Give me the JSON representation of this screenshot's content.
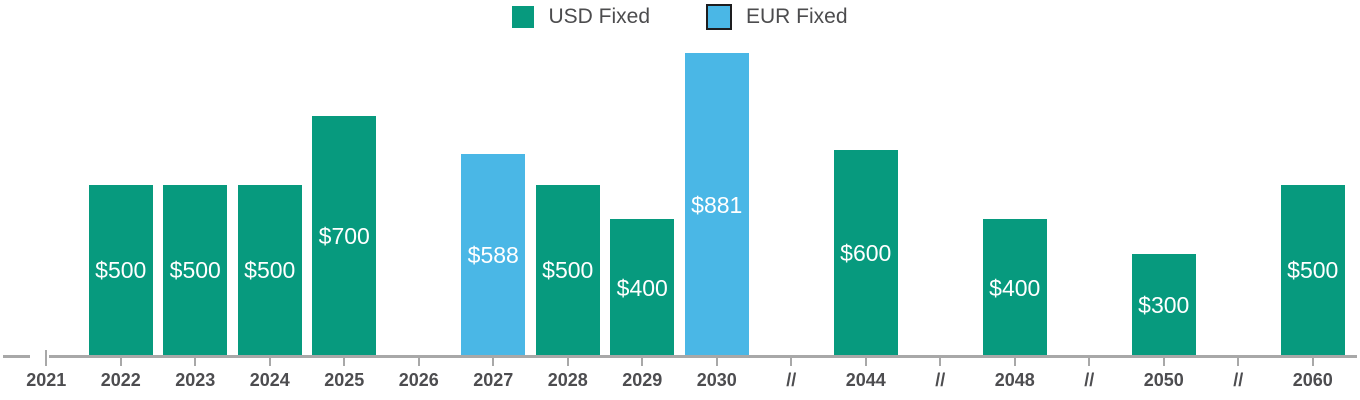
{
  "legend": [
    {
      "label": "USD Fixed",
      "color": "#079a7e",
      "border": null
    },
    {
      "label": "EUR Fixed",
      "color": "#4ab7e6",
      "border": "#1d1d1f"
    }
  ],
  "chart_data": {
    "type": "bar",
    "title": "",
    "xlabel": "",
    "ylabel": "",
    "ylim": [
      0,
      920
    ],
    "grid": false,
    "legend_position": "top-center",
    "categories": [
      "2021",
      "2022",
      "2023",
      "2024",
      "2025",
      "2026",
      "2027",
      "2028",
      "2029",
      "2030",
      "//",
      "2044",
      "//",
      "2048",
      "//",
      "2050",
      "//",
      "2060"
    ],
    "colors": {
      "USD Fixed": "#079a7e",
      "EUR Fixed": "#4ab7e6"
    },
    "bars": [
      {
        "category": "2022",
        "value": 500,
        "label": "$500",
        "series": "USD Fixed"
      },
      {
        "category": "2023",
        "value": 500,
        "label": "$500",
        "series": "USD Fixed"
      },
      {
        "category": "2024",
        "value": 500,
        "label": "$500",
        "series": "USD Fixed"
      },
      {
        "category": "2025",
        "value": 700,
        "label": "$700",
        "series": "USD Fixed"
      },
      {
        "category": "2027",
        "value": 588,
        "label": "$588",
        "series": "EUR Fixed"
      },
      {
        "category": "2028",
        "value": 500,
        "label": "$500",
        "series": "USD Fixed"
      },
      {
        "category": "2029",
        "value": 400,
        "label": "$400",
        "series": "USD Fixed"
      },
      {
        "category": "2030",
        "value": 881,
        "label": "$881",
        "series": "EUR Fixed"
      },
      {
        "category": "2044",
        "value": 600,
        "label": "$600",
        "series": "USD Fixed"
      },
      {
        "category": "2048",
        "value": 400,
        "label": "$400",
        "series": "USD Fixed"
      },
      {
        "category": "2050",
        "value": 300,
        "label": "$300",
        "series": "USD Fixed"
      },
      {
        "category": "2060",
        "value": 500,
        "label": "$500",
        "series": "USD Fixed"
      }
    ],
    "axis": {
      "line_color": "#a8a8a8",
      "tick_color": "#a8a8a8",
      "label_color": "#4d4d50",
      "break_marker": "//",
      "has_origin_break": true
    }
  }
}
